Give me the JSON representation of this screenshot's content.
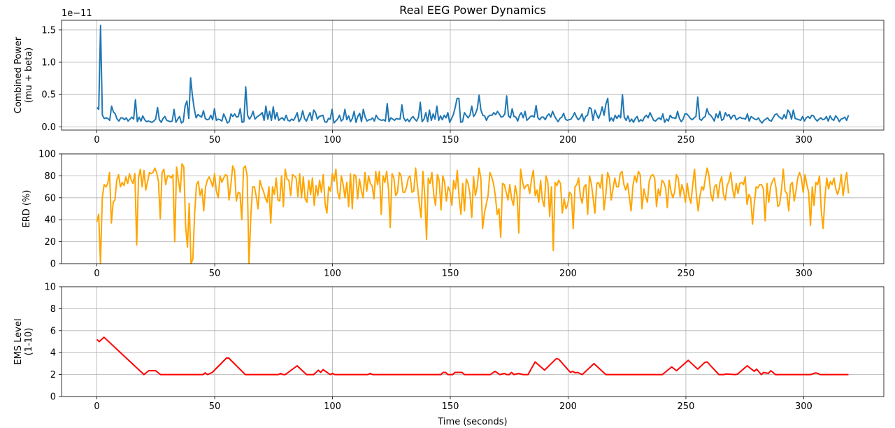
{
  "title": "Real EEG Power Dynamics",
  "chart_data": [
    {
      "type": "line",
      "ylabel_lines": [
        "Combined Power",
        "(mu + beta)"
      ],
      "offset_text": "1e−11",
      "ylim": [
        -0.05,
        1.65
      ],
      "xlim": [
        -15,
        334
      ],
      "xticks": [
        0,
        50,
        100,
        150,
        200,
        250,
        300
      ],
      "yticks": [
        0.0,
        0.5,
        1.0,
        1.5
      ],
      "ytick_labels": [
        "0.0",
        "0.5",
        "1.0",
        "1.5"
      ],
      "grid": true,
      "color": "#1f77b4",
      "values": [
        0.3,
        0.27,
        1.57,
        0.18,
        0.13,
        0.14,
        0.13,
        0.1,
        0.32,
        0.23,
        0.2,
        0.12,
        0.09,
        0.14,
        0.14,
        0.11,
        0.14,
        0.09,
        0.12,
        0.15,
        0.12,
        0.42,
        0.08,
        0.15,
        0.09,
        0.17,
        0.11,
        0.08,
        0.09,
        0.08,
        0.07,
        0.09,
        0.12,
        0.3,
        0.11,
        0.07,
        0.13,
        0.16,
        0.1,
        0.09,
        0.08,
        0.09,
        0.27,
        0.07,
        0.12,
        0.16,
        0.06,
        0.08,
        0.32,
        0.4,
        0.13,
        0.76,
        0.48,
        0.28,
        0.14,
        0.19,
        0.17,
        0.15,
        0.25,
        0.13,
        0.11,
        0.12,
        0.18,
        0.11,
        0.28,
        0.1,
        0.12,
        0.11,
        0.09,
        0.2,
        0.14,
        0.06,
        0.08,
        0.2,
        0.16,
        0.2,
        0.15,
        0.16,
        0.28,
        0.07,
        0.08,
        0.62,
        0.18,
        0.12,
        0.16,
        0.24,
        0.12,
        0.15,
        0.17,
        0.19,
        0.22,
        0.1,
        0.32,
        0.12,
        0.24,
        0.1,
        0.31,
        0.12,
        0.22,
        0.1,
        0.13,
        0.14,
        0.1,
        0.18,
        0.1,
        0.09,
        0.12,
        0.1,
        0.15,
        0.22,
        0.08,
        0.13,
        0.25,
        0.13,
        0.09,
        0.16,
        0.22,
        0.1,
        0.26,
        0.22,
        0.12,
        0.16,
        0.17,
        0.18,
        0.08,
        0.07,
        0.13,
        0.12,
        0.27,
        0.06,
        0.09,
        0.12,
        0.18,
        0.09,
        0.12,
        0.27,
        0.11,
        0.17,
        0.08,
        0.13,
        0.24,
        0.07,
        0.16,
        0.21,
        0.08,
        0.27,
        0.15,
        0.09,
        0.11,
        0.11,
        0.14,
        0.09,
        0.18,
        0.13,
        0.11,
        0.1,
        0.11,
        0.09,
        0.36,
        0.08,
        0.14,
        0.12,
        0.1,
        0.13,
        0.12,
        0.12,
        0.34,
        0.14,
        0.09,
        0.12,
        0.08,
        0.13,
        0.16,
        0.12,
        0.09,
        0.15,
        0.38,
        0.08,
        0.12,
        0.22,
        0.08,
        0.26,
        0.1,
        0.2,
        0.12,
        0.32,
        0.1,
        0.17,
        0.11,
        0.18,
        0.14,
        0.22,
        0.07,
        0.13,
        0.19,
        0.3,
        0.44,
        0.44,
        0.07,
        0.08,
        0.22,
        0.18,
        0.14,
        0.18,
        0.32,
        0.16,
        0.2,
        0.28,
        0.49,
        0.26,
        0.18,
        0.17,
        0.1,
        0.16,
        0.18,
        0.18,
        0.22,
        0.19,
        0.24,
        0.2,
        0.15,
        0.16,
        0.2,
        0.48,
        0.17,
        0.14,
        0.28,
        0.16,
        0.15,
        0.09,
        0.18,
        0.22,
        0.14,
        0.24,
        0.1,
        0.13,
        0.16,
        0.17,
        0.15,
        0.33,
        0.14,
        0.11,
        0.15,
        0.15,
        0.11,
        0.17,
        0.2,
        0.15,
        0.24,
        0.17,
        0.12,
        0.08,
        0.13,
        0.15,
        0.21,
        0.12,
        0.1,
        0.11,
        0.12,
        0.16,
        0.22,
        0.15,
        0.11,
        0.14,
        0.2,
        0.09,
        0.16,
        0.18,
        0.3,
        0.28,
        0.1,
        0.26,
        0.19,
        0.13,
        0.2,
        0.31,
        0.18,
        0.35,
        0.44,
        0.09,
        0.14,
        0.09,
        0.18,
        0.13,
        0.18,
        0.14,
        0.5,
        0.15,
        0.1,
        0.17,
        0.08,
        0.12,
        0.07,
        0.13,
        0.16,
        0.08,
        0.11,
        0.09,
        0.15,
        0.18,
        0.14,
        0.22,
        0.16,
        0.1,
        0.09,
        0.12,
        0.14,
        0.11,
        0.2,
        0.07,
        0.12,
        0.09,
        0.18,
        0.14,
        0.14,
        0.13,
        0.24,
        0.13,
        0.08,
        0.12,
        0.2,
        0.2,
        0.17,
        0.13,
        0.11,
        0.14,
        0.16,
        0.46,
        0.12,
        0.1,
        0.14,
        0.16,
        0.28,
        0.2,
        0.18,
        0.14,
        0.09,
        0.2,
        0.14,
        0.24,
        0.1,
        0.12,
        0.22,
        0.17,
        0.19,
        0.12,
        0.17,
        0.18,
        0.11,
        0.13,
        0.15,
        0.13,
        0.13,
        0.12,
        0.2,
        0.09,
        0.16,
        0.14,
        0.12,
        0.11,
        0.14,
        0.09,
        0.06,
        0.1,
        0.12,
        0.14,
        0.1,
        0.09,
        0.14,
        0.19,
        0.2,
        0.16,
        0.14,
        0.12,
        0.19,
        0.13,
        0.26,
        0.22,
        0.12,
        0.26,
        0.13,
        0.12,
        0.11,
        0.1,
        0.16,
        0.09,
        0.14,
        0.16,
        0.13,
        0.18,
        0.17,
        0.12,
        0.09,
        0.12,
        0.14,
        0.11,
        0.12,
        0.16,
        0.09,
        0.17,
        0.12,
        0.1,
        0.17,
        0.14,
        0.08,
        0.12,
        0.13,
        0.15,
        0.1,
        0.18
      ]
    },
    {
      "type": "line",
      "ylabel_lines": [
        "ERD (%)"
      ],
      "ylim": [
        0,
        100
      ],
      "xlim": [
        -15,
        334
      ],
      "xticks": [
        0,
        50,
        100,
        150,
        200,
        250,
        300
      ],
      "yticks": [
        0,
        20,
        40,
        60,
        80,
        100
      ],
      "ytick_labels": [
        "0",
        "20",
        "40",
        "60",
        "80",
        "100"
      ],
      "grid": true,
      "color": "#ffa500",
      "values": [
        38,
        45,
        0,
        60,
        72,
        70,
        73,
        83,
        37,
        56,
        58,
        76,
        81,
        70,
        74,
        71,
        79,
        73,
        82,
        76,
        73,
        82,
        17,
        78,
        86,
        70,
        85,
        67,
        75,
        83,
        82,
        83,
        87,
        83,
        75,
        41,
        83,
        86,
        72,
        80,
        80,
        78,
        81,
        20,
        88,
        76,
        65,
        91,
        88,
        34,
        15,
        55,
        0,
        4,
        46,
        72,
        75,
        62,
        68,
        48,
        70,
        76,
        79,
        75,
        70,
        82,
        66,
        60,
        80,
        74,
        78,
        81,
        80,
        58,
        72,
        89,
        85,
        57,
        65,
        64,
        40,
        87,
        89,
        80,
        0,
        43,
        70,
        70,
        61,
        50,
        76,
        70,
        66,
        60,
        56,
        70,
        37,
        70,
        63,
        78,
        58,
        57,
        80,
        52,
        86,
        77,
        76,
        62,
        81,
        80,
        78,
        61,
        82,
        60,
        79,
        59,
        56,
        76,
        63,
        78,
        53,
        71,
        62,
        76,
        65,
        81,
        55,
        46,
        70,
        66,
        82,
        75,
        86,
        65,
        59,
        80,
        72,
        60,
        74,
        52,
        82,
        50,
        81,
        80,
        59,
        77,
        67,
        60,
        83,
        66,
        80,
        73,
        71,
        59,
        84,
        72,
        84,
        45,
        80,
        74,
        84,
        68,
        33,
        82,
        78,
        62,
        65,
        83,
        80,
        65,
        65,
        70,
        78,
        80,
        65,
        66,
        87,
        71,
        55,
        42,
        84,
        63,
        22,
        78,
        73,
        83,
        63,
        53,
        81,
        76,
        49,
        80,
        74,
        57,
        70,
        66,
        53,
        76,
        68,
        85,
        60,
        45,
        73,
        48,
        77,
        73,
        64,
        42,
        79,
        62,
        70,
        87,
        78,
        32,
        46,
        54,
        62,
        83,
        79,
        73,
        62,
        45,
        50,
        24,
        73,
        72,
        65,
        58,
        72,
        59,
        53,
        71,
        62,
        28,
        86,
        75,
        68,
        71,
        72,
        64,
        77,
        85,
        62,
        67,
        56,
        76,
        58,
        52,
        80,
        74,
        43,
        70,
        12,
        74,
        71,
        76,
        73,
        46,
        59,
        50,
        54,
        65,
        63,
        32,
        70,
        72,
        78,
        61,
        55,
        70,
        72,
        45,
        80,
        73,
        60,
        46,
        73,
        74,
        69,
        81,
        49,
        63,
        83,
        78,
        58,
        68,
        78,
        70,
        70,
        82,
        84,
        72,
        67,
        73,
        61,
        48,
        71,
        80,
        74,
        84,
        81,
        50,
        68,
        61,
        56,
        75,
        80,
        81,
        78,
        52,
        68,
        62,
        76,
        74,
        69,
        51,
        76,
        66,
        60,
        65,
        81,
        78,
        61,
        72,
        66,
        56,
        73,
        61,
        55,
        72,
        86,
        63,
        48,
        62,
        70,
        67,
        78,
        87,
        80,
        63,
        57,
        70,
        72,
        60,
        74,
        79,
        63,
        58,
        71,
        75,
        83,
        68,
        60,
        73,
        64,
        73,
        74,
        72,
        79,
        54,
        63,
        60,
        36,
        55,
        70,
        69,
        72,
        72,
        68,
        39,
        73,
        56,
        70,
        75,
        78,
        69,
        52,
        54,
        67,
        86,
        66,
        64,
        48,
        72,
        74,
        57,
        66,
        78,
        83,
        78,
        65,
        81,
        72,
        65,
        35,
        70,
        53,
        74,
        72,
        80,
        48,
        32,
        60,
        78,
        68,
        75,
        72,
        78,
        68,
        63,
        69,
        81,
        62,
        74,
        83,
        64
      ]
    },
    {
      "type": "line",
      "ylabel_lines": [
        "EMS Level",
        "(1-10)"
      ],
      "xlabel": "Time (seconds)",
      "ylim": [
        0,
        10
      ],
      "xlim": [
        -15,
        334
      ],
      "xticks": [
        0,
        50,
        100,
        150,
        200,
        250,
        300
      ],
      "yticks": [
        0,
        2,
        4,
        6,
        8,
        10
      ],
      "ytick_labels": [
        "0",
        "2",
        "4",
        "6",
        "8",
        "10"
      ],
      "grid": true,
      "color": "#ff0000",
      "points": [
        [
          0,
          5.2
        ],
        [
          1,
          5.0
        ],
        [
          3,
          5.4
        ],
        [
          20,
          2.0
        ],
        [
          22,
          2.35
        ],
        [
          25,
          2.35
        ],
        [
          27,
          2.0
        ],
        [
          45,
          2.0
        ],
        [
          46,
          2.15
        ],
        [
          47,
          2.0
        ],
        [
          49,
          2.2
        ],
        [
          55,
          3.5
        ],
        [
          56,
          3.5
        ],
        [
          63,
          2.0
        ],
        [
          77,
          2.0
        ],
        [
          78,
          2.1
        ],
        [
          79,
          2.0
        ],
        [
          80,
          2.0
        ],
        [
          85,
          2.8
        ],
        [
          89,
          2.0
        ],
        [
          92,
          2.0
        ],
        [
          94,
          2.4
        ],
        [
          95,
          2.2
        ],
        [
          96,
          2.45
        ],
        [
          99,
          2.0
        ],
        [
          100,
          2.1
        ],
        [
          101,
          2.0
        ],
        [
          115,
          2.0
        ],
        [
          116,
          2.1
        ],
        [
          117,
          2.0
        ],
        [
          146,
          2.0
        ],
        [
          147,
          2.2
        ],
        [
          148,
          2.2
        ],
        [
          149,
          2.0
        ],
        [
          151,
          2.0
        ],
        [
          152,
          2.2
        ],
        [
          155,
          2.2
        ],
        [
          156,
          2.0
        ],
        [
          167,
          2.0
        ],
        [
          169,
          2.3
        ],
        [
          171,
          2.0
        ],
        [
          173,
          2.1
        ],
        [
          174,
          2.0
        ],
        [
          175,
          2.0
        ],
        [
          176,
          2.2
        ],
        [
          177,
          2.0
        ],
        [
          179,
          2.1
        ],
        [
          181,
          2.0
        ],
        [
          183,
          2.0
        ],
        [
          186,
          3.15
        ],
        [
          190,
          2.4
        ],
        [
          195,
          3.45
        ],
        [
          196,
          3.4
        ],
        [
          201,
          2.2
        ],
        [
          202,
          2.3
        ],
        [
          203,
          2.15
        ],
        [
          204,
          2.2
        ],
        [
          206,
          2.0
        ],
        [
          211,
          3.0
        ],
        [
          216,
          2.0
        ],
        [
          240,
          2.0
        ],
        [
          244,
          2.7
        ],
        [
          246,
          2.35
        ],
        [
          251,
          3.3
        ],
        [
          255,
          2.5
        ],
        [
          258,
          3.1
        ],
        [
          259,
          3.15
        ],
        [
          264,
          2.0
        ],
        [
          266,
          2.0
        ],
        [
          267,
          2.05
        ],
        [
          271,
          2.0
        ],
        [
          272,
          2.05
        ],
        [
          276,
          2.8
        ],
        [
          279,
          2.3
        ],
        [
          280,
          2.5
        ],
        [
          282,
          2.0
        ],
        [
          283,
          2.2
        ],
        [
          285,
          2.1
        ],
        [
          286,
          2.35
        ],
        [
          287,
          2.2
        ],
        [
          288,
          2.0
        ],
        [
          303,
          2.0
        ],
        [
          305,
          2.15
        ],
        [
          306,
          2.1
        ],
        [
          307,
          2.0
        ],
        [
          319,
          2.0
        ]
      ]
    }
  ]
}
